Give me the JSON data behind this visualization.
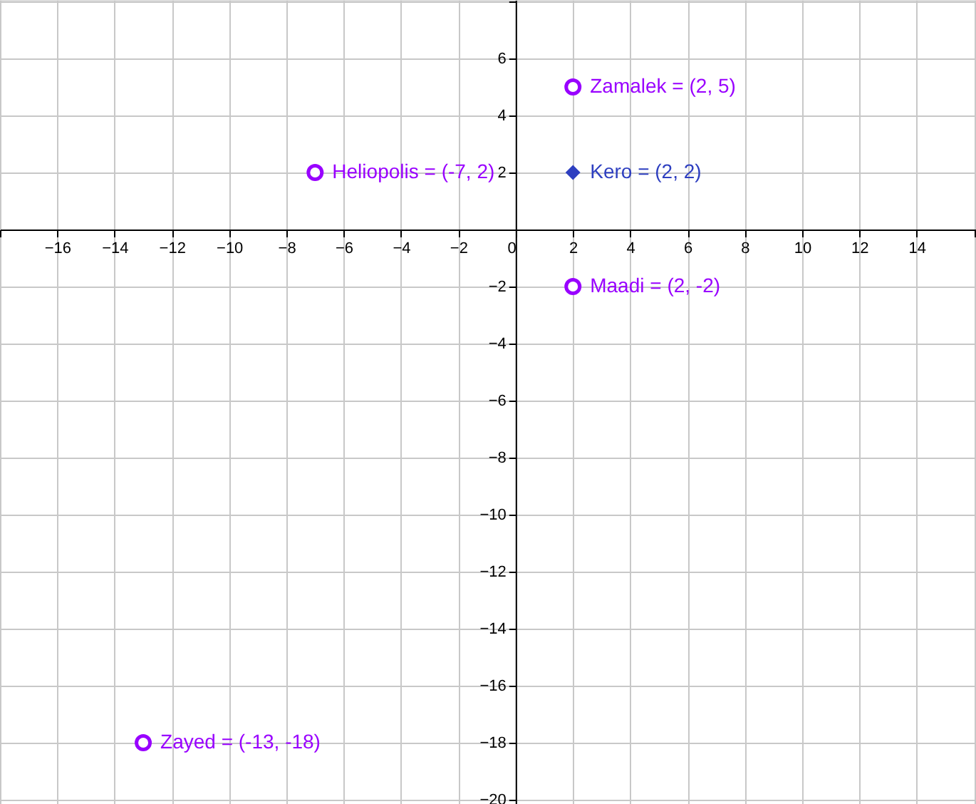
{
  "chart_data": {
    "type": "scatter",
    "xlim": [
      -18,
      16.07
    ],
    "ylim": [
      -20.15,
      8.05
    ],
    "xticks": [
      {
        "value": -18,
        "label": null
      },
      -16,
      -14,
      -12,
      -10,
      -8,
      -6,
      -4,
      -2,
      0,
      2,
      4,
      6,
      8,
      10,
      12,
      14,
      {
        "value": 16,
        "label": null
      }
    ],
    "yticks": [
      -20,
      -18,
      -16,
      -14,
      -12,
      -10,
      -8,
      -6,
      -4,
      -2,
      2,
      4,
      6,
      {
        "value": 8,
        "label": null
      }
    ],
    "grid": true,
    "series": [
      {
        "color": "#9900ff",
        "marker": "circle",
        "x": [
          2,
          -7,
          2,
          -13
        ],
        "values": [
          5,
          2,
          -2,
          -18
        ]
      },
      {
        "color": "#2e3fc0",
        "marker": "diamond",
        "x": [
          2
        ],
        "values": [
          2
        ]
      }
    ],
    "annotations": [
      {
        "text": "Zamalek = (2, 5)",
        "x": 2,
        "y": 5
      },
      {
        "text": "Heliopolis = (-7, 2)",
        "x": -7,
        "y": 2
      },
      {
        "text": "Kero = (2, 2)",
        "x": 2,
        "y": 2
      },
      {
        "text": "Maadi = (2, -2)",
        "x": 2,
        "y": -2
      },
      {
        "text": "Zayed = (-13, -18)",
        "x": -13,
        "y": -18
      }
    ]
  }
}
